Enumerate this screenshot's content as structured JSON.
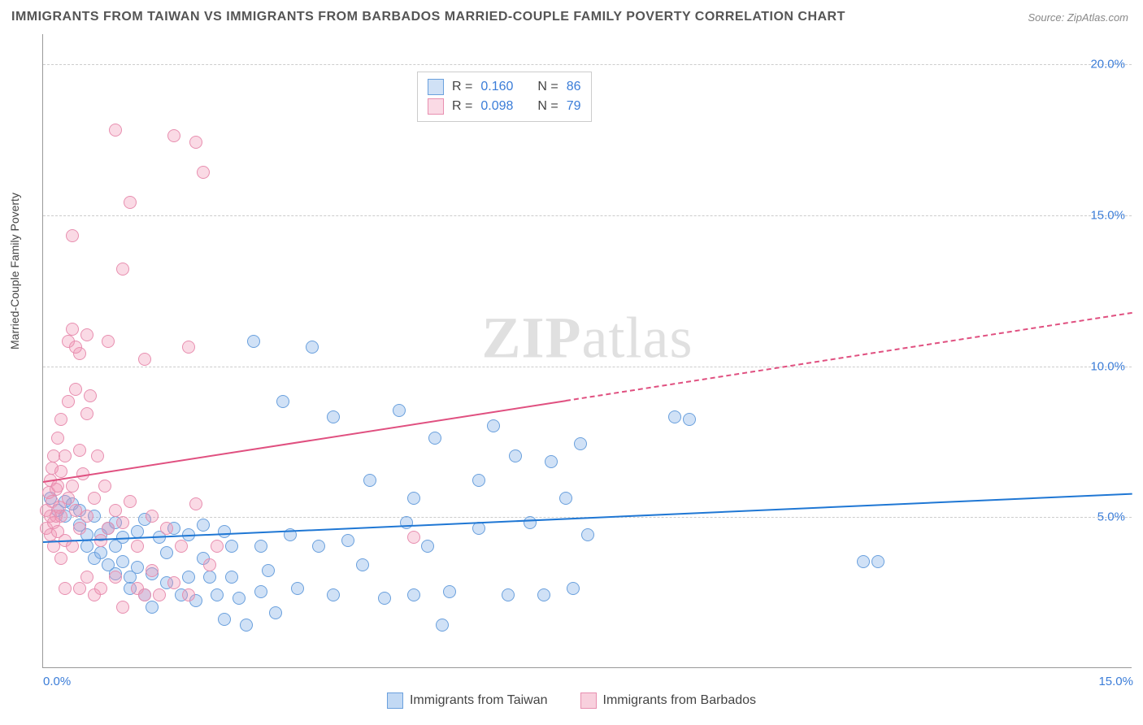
{
  "title": "IMMIGRANTS FROM TAIWAN VS IMMIGRANTS FROM BARBADOS MARRIED-COUPLE FAMILY POVERTY CORRELATION CHART",
  "source": "Source: ZipAtlas.com",
  "watermark_a": "ZIP",
  "watermark_b": "atlas",
  "y_axis_label": "Married-Couple Family Poverty",
  "chart": {
    "type": "scatter",
    "xlim": [
      0,
      15
    ],
    "ylim": [
      0,
      21
    ],
    "x_ticks": [
      {
        "v": 0,
        "label": "0.0%",
        "pos": "left"
      },
      {
        "v": 15,
        "label": "15.0%",
        "pos": "right"
      }
    ],
    "y_ticks": [
      {
        "v": 5,
        "label": "5.0%"
      },
      {
        "v": 10,
        "label": "10.0%"
      },
      {
        "v": 15,
        "label": "15.0%"
      },
      {
        "v": 20,
        "label": "20.0%"
      }
    ],
    "grid_color": "#cccccc",
    "background_color": "#ffffff",
    "marker_radius": 8,
    "series": [
      {
        "name": "Immigrants from Taiwan",
        "fill": "rgba(120,170,230,0.35)",
        "stroke": "#6aa0dd",
        "trend_color": "#1f77d4",
        "trend_width": 2.5,
        "trend": {
          "x1": 0,
          "y1": 4.2,
          "x2": 15,
          "y2": 5.8,
          "solid_end_x": 15
        },
        "r_label": "R =",
        "r_value": "0.160",
        "n_label": "N =",
        "n_value": "86",
        "points": [
          [
            0.1,
            5.6
          ],
          [
            0.2,
            5.2
          ],
          [
            0.3,
            5.5
          ],
          [
            0.3,
            5.0
          ],
          [
            0.4,
            5.4
          ],
          [
            0.5,
            5.2
          ],
          [
            0.5,
            4.7
          ],
          [
            0.6,
            4.4
          ],
          [
            0.6,
            4.0
          ],
          [
            0.7,
            3.6
          ],
          [
            0.7,
            5.0
          ],
          [
            0.8,
            4.4
          ],
          [
            0.8,
            3.8
          ],
          [
            0.9,
            4.6
          ],
          [
            0.9,
            3.4
          ],
          [
            1.0,
            4.8
          ],
          [
            1.0,
            4.0
          ],
          [
            1.0,
            3.1
          ],
          [
            1.1,
            3.5
          ],
          [
            1.1,
            4.3
          ],
          [
            1.2,
            3.0
          ],
          [
            1.2,
            2.6
          ],
          [
            1.3,
            4.5
          ],
          [
            1.3,
            3.3
          ],
          [
            1.4,
            2.4
          ],
          [
            1.4,
            4.9
          ],
          [
            1.5,
            3.1
          ],
          [
            1.5,
            2.0
          ],
          [
            1.6,
            4.3
          ],
          [
            1.7,
            2.8
          ],
          [
            1.7,
            3.8
          ],
          [
            1.8,
            4.6
          ],
          [
            1.9,
            2.4
          ],
          [
            2.0,
            4.4
          ],
          [
            2.0,
            3.0
          ],
          [
            2.1,
            2.2
          ],
          [
            2.2,
            4.7
          ],
          [
            2.2,
            3.6
          ],
          [
            2.3,
            3.0
          ],
          [
            2.4,
            2.4
          ],
          [
            2.5,
            4.5
          ],
          [
            2.5,
            1.6
          ],
          [
            2.6,
            3.0
          ],
          [
            2.6,
            4.0
          ],
          [
            2.7,
            2.3
          ],
          [
            2.8,
            1.4
          ],
          [
            2.9,
            10.8
          ],
          [
            3.0,
            4.0
          ],
          [
            3.0,
            2.5
          ],
          [
            3.1,
            3.2
          ],
          [
            3.2,
            1.8
          ],
          [
            3.3,
            8.8
          ],
          [
            3.4,
            4.4
          ],
          [
            3.5,
            2.6
          ],
          [
            3.7,
            10.6
          ],
          [
            3.8,
            4.0
          ],
          [
            4.0,
            8.3
          ],
          [
            4.0,
            2.4
          ],
          [
            4.2,
            4.2
          ],
          [
            4.4,
            3.4
          ],
          [
            4.5,
            6.2
          ],
          [
            4.7,
            2.3
          ],
          [
            4.9,
            8.5
          ],
          [
            5.0,
            4.8
          ],
          [
            5.1,
            2.4
          ],
          [
            5.3,
            4.0
          ],
          [
            5.4,
            7.6
          ],
          [
            5.5,
            1.4
          ],
          [
            5.6,
            2.5
          ],
          [
            6.0,
            4.6
          ],
          [
            6.2,
            8.0
          ],
          [
            6.4,
            2.4
          ],
          [
            6.5,
            7.0
          ],
          [
            6.7,
            4.8
          ],
          [
            6.9,
            2.4
          ],
          [
            7.0,
            6.8
          ],
          [
            7.2,
            5.6
          ],
          [
            7.3,
            2.6
          ],
          [
            7.4,
            7.4
          ],
          [
            7.5,
            4.4
          ],
          [
            8.7,
            8.3
          ],
          [
            8.9,
            8.2
          ],
          [
            11.3,
            3.5
          ],
          [
            11.5,
            3.5
          ],
          [
            5.1,
            5.6
          ],
          [
            6.0,
            6.2
          ]
        ]
      },
      {
        "name": "Immigrants from Barbados",
        "fill": "rgba(240,150,180,0.35)",
        "stroke": "#e88fb0",
        "trend_color": "#e05080",
        "trend_width": 2,
        "trend": {
          "x1": 0,
          "y1": 6.2,
          "x2": 15,
          "y2": 11.8,
          "solid_end_x": 7.2
        },
        "r_label": "R =",
        "r_value": "0.098",
        "n_label": "N =",
        "n_value": "79",
        "points": [
          [
            0.05,
            5.2
          ],
          [
            0.05,
            4.6
          ],
          [
            0.08,
            5.8
          ],
          [
            0.1,
            6.2
          ],
          [
            0.1,
            5.0
          ],
          [
            0.1,
            4.4
          ],
          [
            0.12,
            6.6
          ],
          [
            0.12,
            5.5
          ],
          [
            0.15,
            7.0
          ],
          [
            0.15,
            4.8
          ],
          [
            0.15,
            4.0
          ],
          [
            0.18,
            5.9
          ],
          [
            0.18,
            5.0
          ],
          [
            0.2,
            7.6
          ],
          [
            0.2,
            6.0
          ],
          [
            0.2,
            4.5
          ],
          [
            0.22,
            5.3
          ],
          [
            0.25,
            8.2
          ],
          [
            0.25,
            6.5
          ],
          [
            0.25,
            5.0
          ],
          [
            0.25,
            3.6
          ],
          [
            0.3,
            7.0
          ],
          [
            0.3,
            4.2
          ],
          [
            0.3,
            2.6
          ],
          [
            0.35,
            8.8
          ],
          [
            0.35,
            5.6
          ],
          [
            0.35,
            10.8
          ],
          [
            0.4,
            6.0
          ],
          [
            0.4,
            4.0
          ],
          [
            0.4,
            14.3
          ],
          [
            0.4,
            11.2
          ],
          [
            0.45,
            9.2
          ],
          [
            0.45,
            5.2
          ],
          [
            0.5,
            10.4
          ],
          [
            0.5,
            7.2
          ],
          [
            0.5,
            4.6
          ],
          [
            0.5,
            2.6
          ],
          [
            0.55,
            6.4
          ],
          [
            0.6,
            11.0
          ],
          [
            0.6,
            5.0
          ],
          [
            0.6,
            3.0
          ],
          [
            0.65,
            9.0
          ],
          [
            0.7,
            5.6
          ],
          [
            0.7,
            2.4
          ],
          [
            0.75,
            7.0
          ],
          [
            0.8,
            4.2
          ],
          [
            0.8,
            2.6
          ],
          [
            0.85,
            6.0
          ],
          [
            0.9,
            4.6
          ],
          [
            0.9,
            10.8
          ],
          [
            1.0,
            17.8
          ],
          [
            1.0,
            5.2
          ],
          [
            1.0,
            3.0
          ],
          [
            1.1,
            13.2
          ],
          [
            1.1,
            4.8
          ],
          [
            1.1,
            2.0
          ],
          [
            1.2,
            15.4
          ],
          [
            1.2,
            5.5
          ],
          [
            1.3,
            4.0
          ],
          [
            1.3,
            2.6
          ],
          [
            1.4,
            10.2
          ],
          [
            1.5,
            5.0
          ],
          [
            1.5,
            3.2
          ],
          [
            1.6,
            2.4
          ],
          [
            1.7,
            4.6
          ],
          [
            1.8,
            2.8
          ],
          [
            1.8,
            17.6
          ],
          [
            1.9,
            4.0
          ],
          [
            2.0,
            10.6
          ],
          [
            2.0,
            2.4
          ],
          [
            2.1,
            5.4
          ],
          [
            2.2,
            16.4
          ],
          [
            2.3,
            3.4
          ],
          [
            2.4,
            4.0
          ],
          [
            2.1,
            17.4
          ],
          [
            0.6,
            8.4
          ],
          [
            0.45,
            10.6
          ],
          [
            1.4,
            2.4
          ],
          [
            5.1,
            4.3
          ]
        ]
      }
    ]
  },
  "legend_bottom": [
    {
      "label": "Immigrants from Taiwan",
      "fill": "rgba(120,170,230,0.45)",
      "stroke": "#6aa0dd"
    },
    {
      "label": "Immigrants from Barbados",
      "fill": "rgba(240,150,180,0.45)",
      "stroke": "#e88fb0"
    }
  ]
}
